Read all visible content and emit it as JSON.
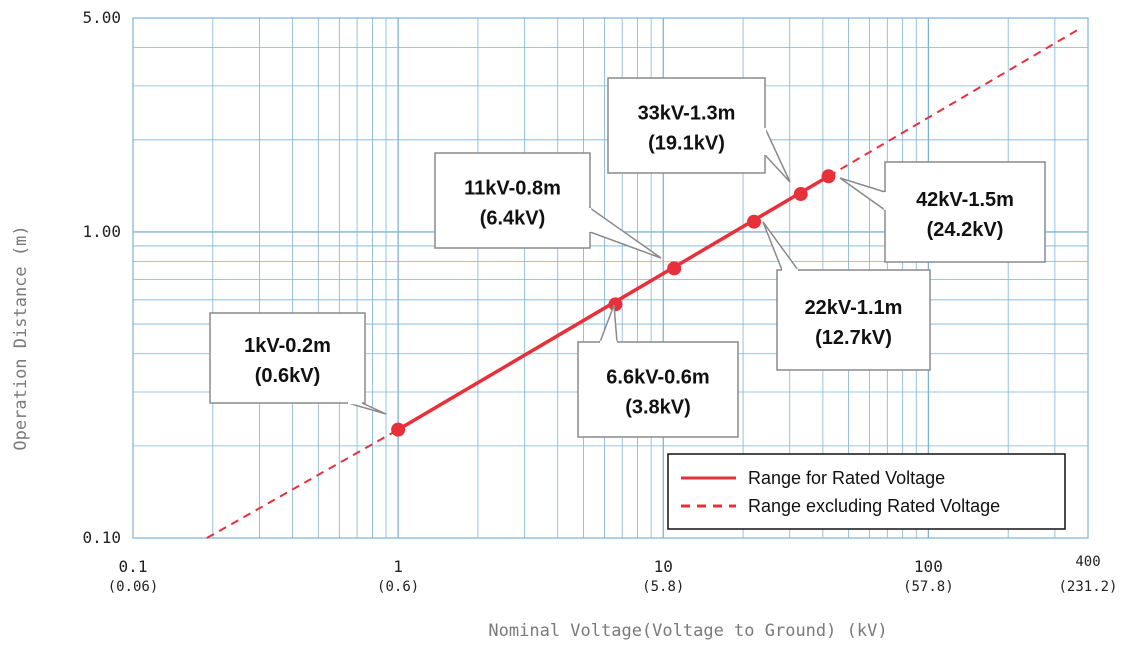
{
  "chart_data": {
    "type": "line",
    "x_scale": "log",
    "y_scale": "log",
    "xlim": [
      0.1,
      400
    ],
    "ylim": [
      0.1,
      5.0
    ],
    "grid": true,
    "xlabel": "Nominal Voltage(Voltage to Ground) (kV)",
    "ylabel": "Operation Distance (m)",
    "x_ticks": [
      {
        "value": 0.1,
        "label": "0.1",
        "sublabel": "(0.06)"
      },
      {
        "value": 1,
        "label": "1",
        "sublabel": "(0.6)"
      },
      {
        "value": 10,
        "label": "10",
        "sublabel": "(5.8)"
      },
      {
        "value": 100,
        "label": "100",
        "sublabel": "(57.8)"
      },
      {
        "value": 400,
        "label": "400",
        "sublabel": "(231.2)"
      }
    ],
    "y_ticks": [
      {
        "value": 0.1,
        "label": "0.10"
      },
      {
        "value": 1.0,
        "label": "1.00"
      },
      {
        "value": 5.0,
        "label": "5.00"
      }
    ],
    "series": [
      {
        "name": "Range for Rated Voltage",
        "style": "solid",
        "color": "#e8303a",
        "x": [
          1,
          42
        ],
        "y": [
          0.226,
          1.52
        ]
      },
      {
        "name": "Range excluding Rated Voltage",
        "style": "dashed",
        "color": "#e8303a",
        "x": [
          0.19,
          1,
          42,
          370
        ],
        "y": [
          0.1,
          0.226,
          1.52,
          4.6
        ]
      }
    ],
    "points": [
      {
        "x": 1,
        "y": 0.226,
        "line1": "1kV-0.2m",
        "line2": "(0.6kV)"
      },
      {
        "x": 6.6,
        "y": 0.58,
        "line1": "6.6kV-0.6m",
        "line2": "(3.8kV)"
      },
      {
        "x": 11,
        "y": 0.76,
        "line1": "11kV-0.8m",
        "line2": "(6.4kV)"
      },
      {
        "x": 22,
        "y": 1.08,
        "line1": "22kV-1.1m",
        "line2": "(12.7kV)"
      },
      {
        "x": 33,
        "y": 1.33,
        "line1": "33kV-1.3m",
        "line2": "(19.1kV)"
      },
      {
        "x": 42,
        "y": 1.52,
        "line1": "42kV-1.5m",
        "line2": "(24.2kV)"
      }
    ],
    "legend_position": "bottom-right",
    "grid_color": "#7fb2d8",
    "line_color": "#e8303a"
  }
}
